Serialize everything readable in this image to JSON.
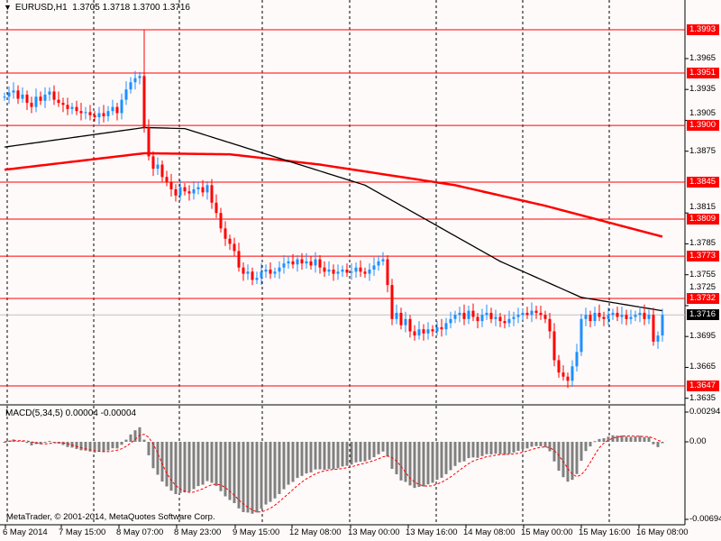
{
  "header": {
    "symbol": "EURUSD,H1",
    "ohlc": "1.3705 1.3718 1.3700 1.3716"
  },
  "indicator": {
    "label": "MACD(5,34,5) 0.00004 -0.00004"
  },
  "copyright": "MetaTrader, © 2001-2014, MetaQuotes Software Corp.",
  "colors": {
    "background": "#fffafa",
    "bull": "#1e90ff",
    "bear": "#ff0000",
    "level": "#ff0000",
    "ma_fast": "#000000",
    "ma_slow": "#ff0000",
    "histogram": "#808080"
  },
  "chart_data": {
    "type": "candlestick",
    "symbol": "EURUSD",
    "timeframe": "H1",
    "ylim": [
      1.3625,
      1.4008
    ],
    "price_ticks": [
      "1.3965",
      "1.3935",
      "1.3905",
      "1.3875",
      "1.3815",
      "1.3785",
      "1.3755",
      "1.3725",
      "1.3695",
      "1.3665",
      "1.3635"
    ],
    "levels": [
      "1.3993",
      "1.3951",
      "1.3900",
      "1.3845",
      "1.3809",
      "1.3773",
      "1.3732",
      "1.3647"
    ],
    "current_price": "1.3716",
    "x_labels": [
      "6 May 2014",
      "7 May 15:00",
      "8 May 07:00",
      "8 May 23:00",
      "9 May 15:00",
      "12 May 08:00",
      "13 May 00:00",
      "13 May 16:00",
      "14 May 08:00",
      "15 May 00:00",
      "15 May 16:00",
      "16 May 08:00"
    ],
    "spike": {
      "bar": 31,
      "high": 1.3993
    },
    "closes": [
      1.3928,
      1.3932,
      1.3934,
      1.3926,
      1.393,
      1.3922,
      1.3918,
      1.3928,
      1.3924,
      1.393,
      1.3933,
      1.3925,
      1.3922,
      1.392,
      1.3916,
      1.3918,
      1.3914,
      1.3912,
      1.3913,
      1.391,
      1.3908,
      1.3912,
      1.3909,
      1.3914,
      1.3918,
      1.3912,
      1.3925,
      1.3935,
      1.3942,
      1.3946,
      1.3948,
      1.3898,
      1.387,
      1.3858,
      1.3862,
      1.385,
      1.3845,
      1.3838,
      1.3832,
      1.384,
      1.3836,
      1.3834,
      1.3838,
      1.384,
      1.3835,
      1.3842,
      1.3825,
      1.3815,
      1.38,
      1.379,
      1.3785,
      1.3778,
      1.3762,
      1.3756,
      1.3758,
      1.375,
      1.3752,
      1.3758,
      1.376,
      1.3756,
      1.3758,
      1.3762,
      1.3766,
      1.3768,
      1.3765,
      1.377,
      1.3766,
      1.3768,
      1.3764,
      1.377,
      1.3762,
      1.3758,
      1.376,
      1.3756,
      1.3758,
      1.376,
      1.3757,
      1.3758,
      1.3762,
      1.3758,
      1.3756,
      1.376,
      1.3764,
      1.3768,
      1.377,
      1.3745,
      1.3712,
      1.3718,
      1.3706,
      1.3712,
      1.37,
      1.3696,
      1.3702,
      1.3698,
      1.3702,
      1.37,
      1.3704,
      1.3702,
      1.3708,
      1.3712,
      1.3716,
      1.3718,
      1.3712,
      1.372,
      1.3714,
      1.371,
      1.3716,
      1.3718,
      1.3712,
      1.3714,
      1.371,
      1.3708,
      1.3712,
      1.3714,
      1.3716,
      1.3718,
      1.3716,
      1.372,
      1.3718,
      1.3716,
      1.3712,
      1.37,
      1.3672,
      1.366,
      1.3656,
      1.3652,
      1.3666,
      1.368,
      1.3712,
      1.3716,
      1.371,
      1.3718,
      1.3714,
      1.3712,
      1.3716,
      1.3718,
      1.3714,
      1.3716,
      1.3712,
      1.3714,
      1.3716,
      1.3718,
      1.3712,
      1.3716,
      1.369,
      1.3696,
      1.3716
    ],
    "ma_fast": {
      "bars": [
        0,
        31,
        40,
        80,
        110,
        128,
        146
      ],
      "values": [
        1.3879,
        1.3898,
        1.3897,
        1.3842,
        1.3768,
        1.3733,
        1.372
      ]
    },
    "ma_slow": {
      "bars": [
        0,
        31,
        50,
        70,
        100,
        120,
        146
      ],
      "values": [
        1.3857,
        1.3873,
        1.3872,
        1.3862,
        1.3842,
        1.3822,
        1.3792
      ]
    },
    "macd": {
      "fast": 5,
      "slow": 34,
      "signal": 5,
      "ticks": [
        "0.00294",
        "0.00",
        "-0.00694"
      ],
      "ylim": [
        -0.00694,
        0.00294
      ]
    }
  }
}
